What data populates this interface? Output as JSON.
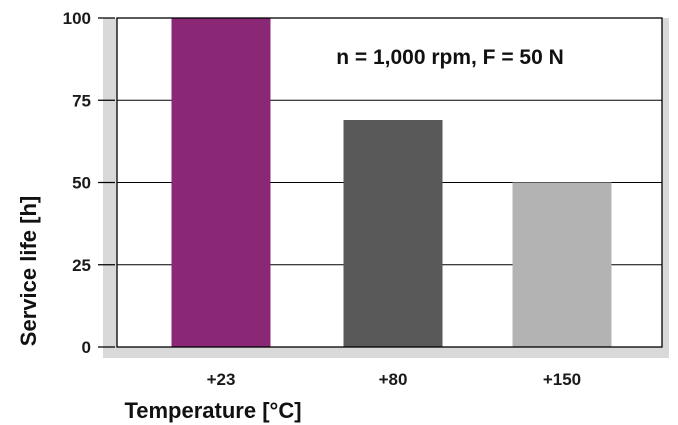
{
  "chart_data": {
    "type": "bar",
    "categories": [
      "+23",
      "+80",
      "+150"
    ],
    "values": [
      100,
      69,
      50
    ],
    "bar_colors": [
      "#8b2875",
      "#595959",
      "#b3b3b3"
    ],
    "xlabel": "Temperature [°C]",
    "ylabel": "Service life [h]",
    "ylim": [
      0,
      100
    ],
    "yticks": [
      "0",
      "25",
      "50",
      "75",
      "100"
    ],
    "annotation": "n = 1,000 rpm, F = 50 N",
    "grid": true,
    "legend": "none",
    "colors": {
      "frame_shadow": "#d9d9d9",
      "gridline": "#000000"
    }
  }
}
